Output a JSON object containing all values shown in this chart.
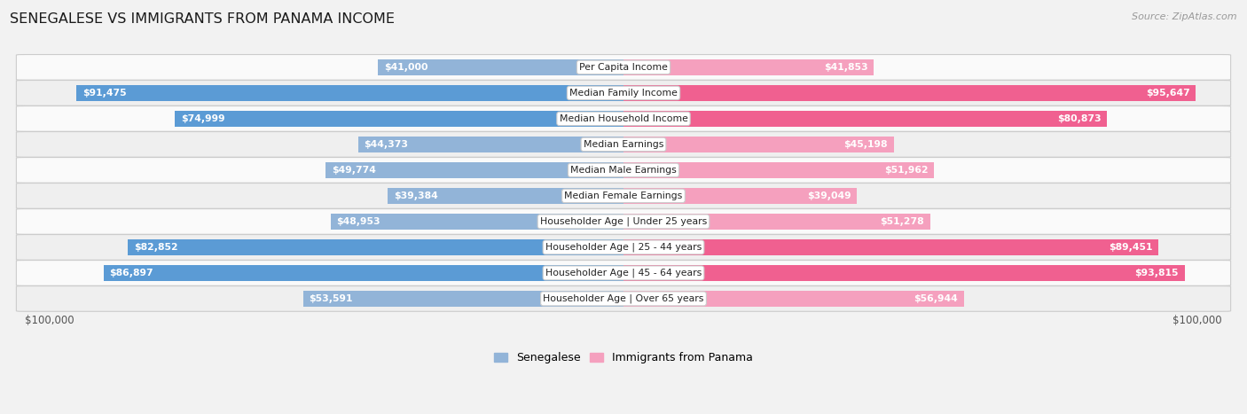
{
  "title": "SENEGALESE VS IMMIGRANTS FROM PANAMA INCOME",
  "source": "Source: ZipAtlas.com",
  "categories": [
    "Per Capita Income",
    "Median Family Income",
    "Median Household Income",
    "Median Earnings",
    "Median Male Earnings",
    "Median Female Earnings",
    "Householder Age | Under 25 years",
    "Householder Age | 25 - 44 years",
    "Householder Age | 45 - 64 years",
    "Householder Age | Over 65 years"
  ],
  "senegalese_values": [
    41000,
    91475,
    74999,
    44373,
    49774,
    39384,
    48953,
    82852,
    86897,
    53591
  ],
  "panama_values": [
    41853,
    95647,
    80873,
    45198,
    51962,
    39049,
    51278,
    89451,
    93815,
    56944
  ],
  "max_value": 100000,
  "senegalese_color_bar": "#92b4d8",
  "panama_color_bar": "#f5a0be",
  "senegalese_color_solid": "#5b9bd5",
  "panama_color_solid": "#f06090",
  "background_color": "#f2f2f2",
  "row_bg_odd": "#fafafa",
  "row_bg_even": "#efefef",
  "bar_height": 0.62,
  "figsize": [
    14.06,
    4.67
  ],
  "dpi": 100,
  "x_axis_label_left": "$100,000",
  "x_axis_label_right": "$100,000",
  "legend_senegalese": "Senegalese",
  "legend_panama": "Immigrants from Panama",
  "inside_label_threshold": 0.3
}
